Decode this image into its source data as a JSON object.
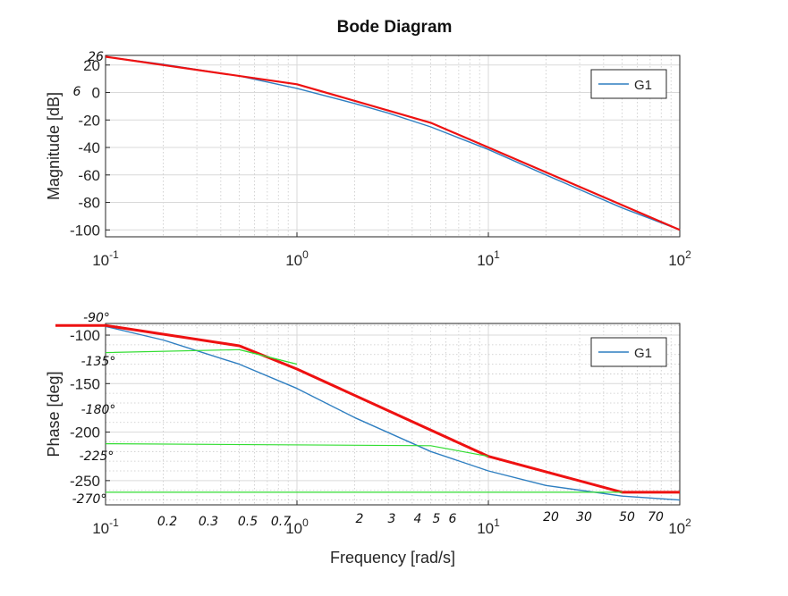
{
  "chart_data": [
    {
      "type": "line",
      "title": "Bode Diagram",
      "xlabel": "",
      "ylabel": "Magnitude [dB]",
      "xscale": "log",
      "xlim": [
        0.1,
        100
      ],
      "ylim": [
        -105,
        27
      ],
      "yticks": [
        20,
        0,
        -20,
        -40,
        -60,
        -80,
        -100
      ],
      "xticks": [
        0.1,
        1,
        10,
        100
      ],
      "grid": true,
      "legend": {
        "position": "top-right",
        "entries": [
          "G1"
        ]
      },
      "series": [
        {
          "name": "G1",
          "color": "#2f7fc1",
          "x": [
            0.1,
            0.2,
            0.5,
            1,
            2,
            3,
            5,
            7,
            10,
            20,
            50,
            100
          ],
          "y": [
            26,
            20.5,
            12,
            3,
            -8,
            -15,
            -25,
            -33,
            -41.5,
            -60,
            -84,
            -100
          ]
        },
        {
          "name": "",
          "color": "#ee1111",
          "x": [
            0.1,
            1,
            5,
            10,
            100
          ],
          "y": [
            26,
            6,
            -22,
            -40,
            -100
          ]
        }
      ],
      "annotations": [
        "26",
        "6"
      ]
    },
    {
      "type": "line",
      "title": "",
      "xlabel": "Frequency [rad/s]",
      "ylabel": "Phase [deg]",
      "xscale": "log",
      "xlim": [
        0.1,
        100
      ],
      "ylim": [
        -275,
        -88
      ],
      "yticks": [
        -100,
        -150,
        -200,
        -250
      ],
      "xticks": [
        0.1,
        1,
        10,
        100
      ],
      "grid": true,
      "legend": {
        "position": "top-right",
        "entries": [
          "G1"
        ]
      },
      "series": [
        {
          "name": "G1",
          "color": "#2f7fc1",
          "x": [
            0.1,
            0.2,
            0.5,
            1,
            2,
            5,
            10,
            20,
            50,
            100
          ],
          "y": [
            -91,
            -105,
            -130,
            -155,
            -185,
            -220,
            -240,
            -255,
            -266,
            -270
          ]
        },
        {
          "name": "",
          "color": "#ee1111",
          "x": [
            0.05,
            0.1,
            0.5,
            1,
            10,
            50,
            100
          ],
          "y": [
            -90,
            -90,
            -111,
            -135,
            -225,
            -262,
            -262
          ]
        },
        {
          "name": "",
          "color": "#33dd33",
          "x": [
            0.1,
            0.5,
            1
          ],
          "y": [
            -118,
            -115,
            -130
          ]
        },
        {
          "name": "",
          "color": "#33dd33",
          "x": [
            0.5,
            1
          ],
          "y": [
            -115,
            -130
          ]
        },
        {
          "name": "",
          "color": "#33dd33",
          "x": [
            0.1,
            5,
            10
          ],
          "y": [
            -212,
            -214,
            -225
          ]
        },
        {
          "name": "",
          "color": "#33dd33",
          "x": [
            0.1,
            50
          ],
          "y": [
            -262,
            -262
          ]
        }
      ],
      "annotations": [
        "-90°",
        "-135°",
        "-180°",
        "-225°",
        "-270°",
        "0.2",
        "0.3",
        "0.5",
        "0.7",
        "2",
        "3",
        "4",
        "5",
        "6",
        "20",
        "30",
        "50",
        "70"
      ]
    }
  ]
}
